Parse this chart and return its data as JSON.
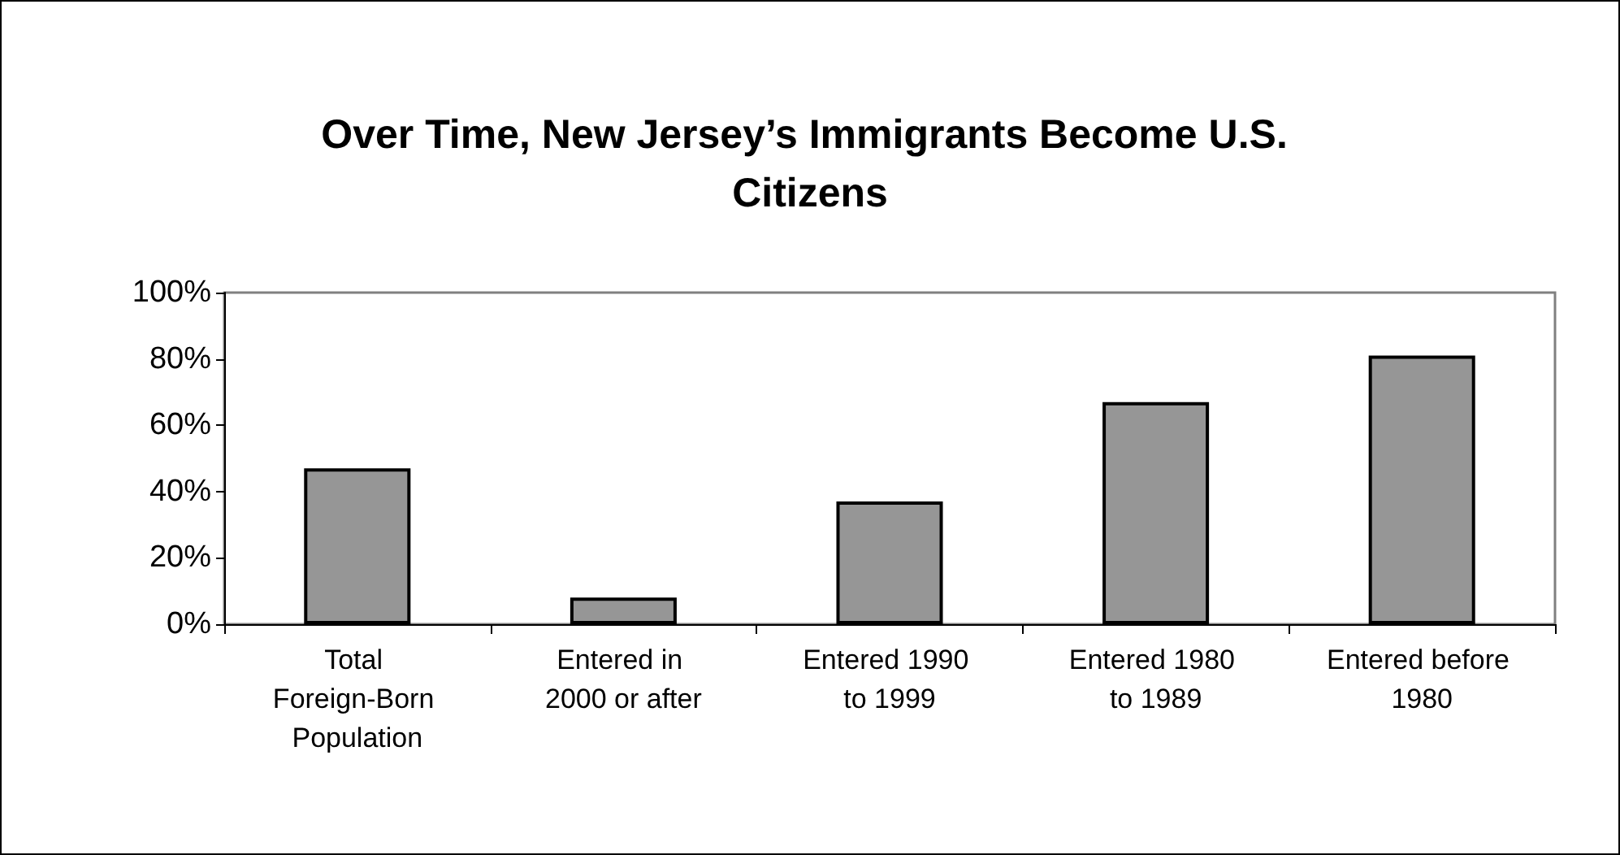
{
  "chart_data": {
    "type": "bar",
    "title": "Over Time, New Jersey’s Immigrants Become U.S. Citizens",
    "categories": [
      "Total Foreign-Born Population",
      "Entered in 2000 or after",
      "Entered 1990 to 1999",
      "Entered 1980 to 1989",
      "Entered before 1980"
    ],
    "values": [
      47,
      8,
      37,
      67,
      81
    ],
    "color": "#969696",
    "ylim": [
      0,
      100
    ],
    "yticks": [
      {
        "value": 0,
        "label": "0%"
      },
      {
        "value": 20,
        "label": "20%"
      },
      {
        "value": 40,
        "label": "40%"
      },
      {
        "value": 60,
        "label": "60%"
      },
      {
        "value": 80,
        "label": "80%"
      },
      {
        "value": 100,
        "label": "100%"
      }
    ],
    "grid": false
  }
}
